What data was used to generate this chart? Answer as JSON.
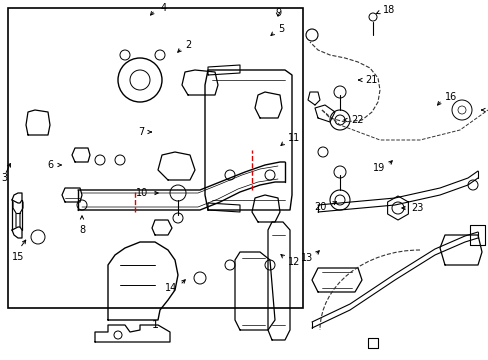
{
  "bg_color": "#ffffff",
  "lc": "#000000",
  "rc": "#dd0000",
  "dc": "#333333",
  "figsize": [
    4.89,
    3.6
  ],
  "dpi": 100
}
